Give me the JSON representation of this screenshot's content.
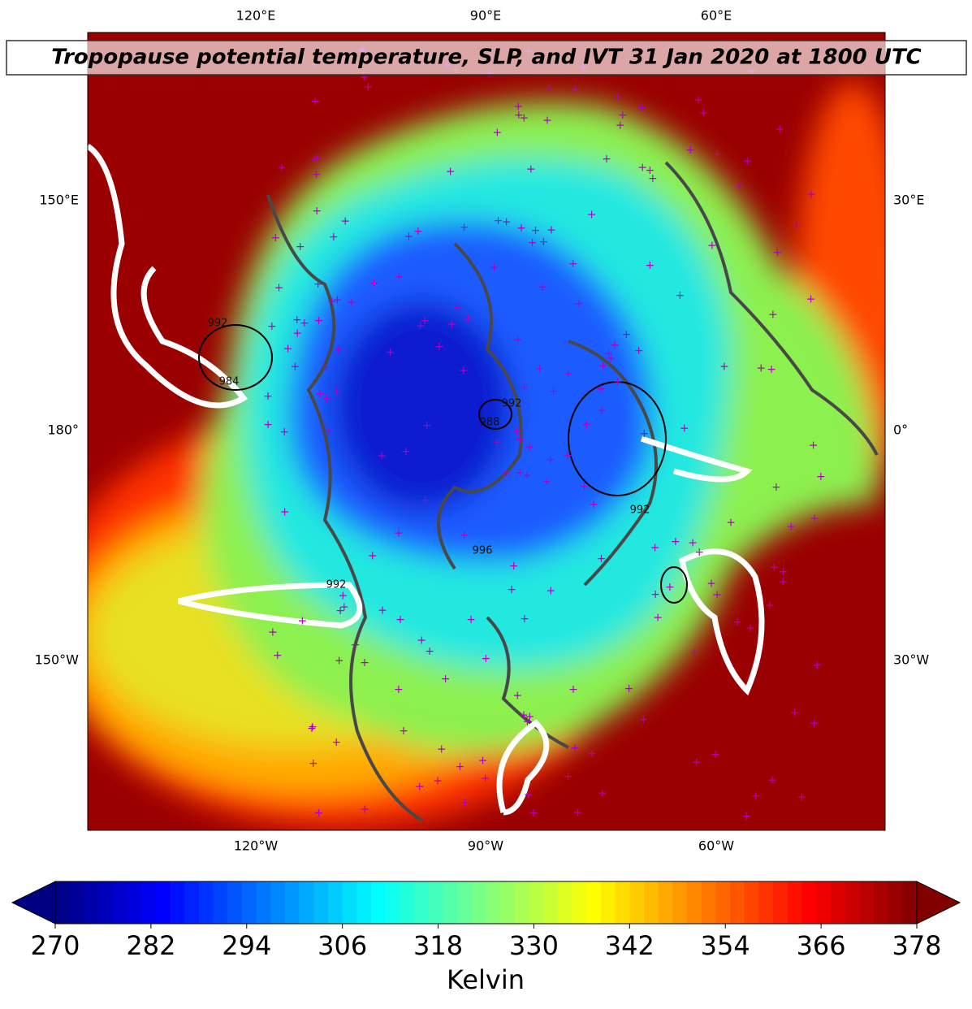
{
  "title": "Tropopause potential temperature, SLP, and IVT 31 Jan 2020 at 1800 UTC",
  "map": {
    "top_labels": [
      "120°E",
      "90°E",
      "60°E"
    ],
    "bottom_labels": [
      "120°W",
      "90°W",
      "60°W"
    ],
    "left_labels": [
      "150°E",
      "180°",
      "150°W"
    ],
    "right_labels": [
      "30°E",
      "0°",
      "30°W"
    ],
    "contour_labels": [
      992,
      984,
      992,
      988,
      992,
      996,
      992
    ]
  },
  "colorbar": {
    "label": "Kelvin",
    "range": [
      270,
      378
    ],
    "ticks": [
      270,
      282,
      294,
      306,
      318,
      330,
      342,
      354,
      366,
      378
    ]
  }
}
